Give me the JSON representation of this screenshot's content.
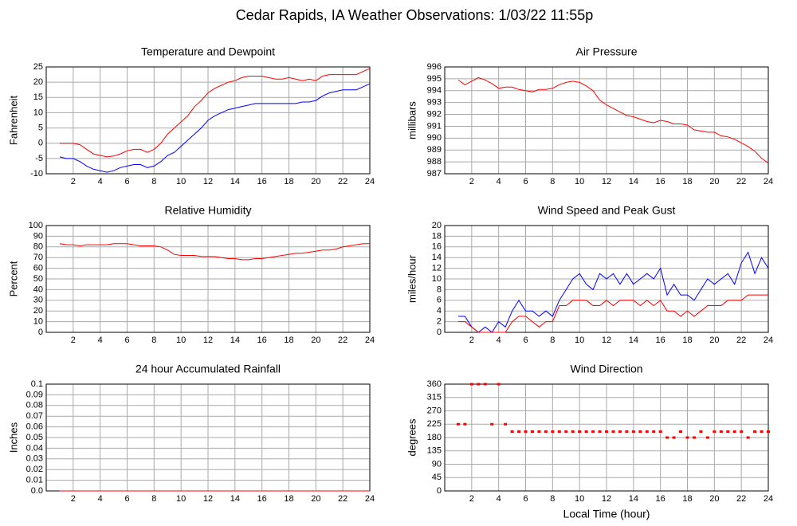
{
  "title": "Cedar Rapids, IA Weather Observations: 1/03/22 11:55p",
  "chart_data": [
    {
      "type": "line",
      "title": "Temperature and Dewpoint",
      "y_label": "Fahrenheit",
      "x": [
        1,
        1.5,
        2,
        2.5,
        3,
        3.5,
        4,
        4.5,
        5,
        5.5,
        6,
        6.5,
        7,
        7.5,
        8,
        8.5,
        9,
        9.5,
        10,
        10.5,
        11,
        11.5,
        12,
        12.5,
        13,
        13.5,
        14,
        14.5,
        15,
        15.5,
        16,
        16.5,
        17,
        17.5,
        18,
        18.5,
        19,
        19.5,
        20,
        20.5,
        21,
        21.5,
        22,
        22.5,
        23,
        23.5,
        24
      ],
      "series": [
        {
          "color": "#ff0000",
          "values": [
            0,
            0,
            0,
            -0.5,
            -2,
            -3.5,
            -4,
            -4.5,
            -4.2,
            -3.5,
            -2.5,
            -2,
            -2,
            -3,
            -2,
            0,
            3,
            5,
            7,
            9,
            12,
            14,
            16.5,
            18,
            19,
            20,
            20.5,
            21.5,
            22,
            22,
            22,
            21.5,
            21,
            21,
            21.5,
            21,
            20.5,
            21,
            20.5,
            22,
            22.5,
            22.5,
            22.5,
            22.5,
            22.5,
            23.5,
            24.5
          ]
        },
        {
          "color": "#0000ff",
          "values": [
            -4.5,
            -5,
            -5,
            -6,
            -7.5,
            -8.5,
            -9,
            -9.5,
            -9,
            -8,
            -7.5,
            -7,
            -7,
            -8,
            -7.5,
            -6,
            -4,
            -3,
            -1,
            1,
            3,
            5,
            7.5,
            9,
            10,
            11,
            11.5,
            12,
            12.5,
            13,
            13,
            13,
            13,
            13,
            13,
            13,
            13.5,
            13.5,
            14,
            15.5,
            16.5,
            17,
            17.5,
            17.5,
            17.5,
            18.5,
            19.5
          ]
        }
      ],
      "xlim": [
        0,
        24
      ],
      "xticks": [
        2,
        4,
        6,
        8,
        10,
        12,
        14,
        16,
        18,
        20,
        22,
        24
      ],
      "ylim": [
        -10,
        25
      ],
      "yticks": [
        -10,
        -5,
        0,
        5,
        10,
        15,
        20,
        25
      ],
      "grid": true
    },
    {
      "type": "line",
      "title": "Air Pressure",
      "y_label": "millibars",
      "x": [
        1,
        1.5,
        2,
        2.5,
        3,
        3.5,
        4,
        4.5,
        5,
        5.5,
        6,
        6.5,
        7,
        7.5,
        8,
        8.5,
        9,
        9.5,
        10,
        10.5,
        11,
        11.5,
        12,
        12.5,
        13,
        13.5,
        14,
        14.5,
        15,
        15.5,
        16,
        16.5,
        17,
        17.5,
        18,
        18.5,
        19,
        19.5,
        20,
        20.5,
        21,
        21.5,
        22,
        22.5,
        23,
        23.5,
        24
      ],
      "series": [
        {
          "color": "#ff0000",
          "values": [
            994.9,
            994.5,
            994.8,
            995.1,
            994.9,
            994.6,
            994.2,
            994.3,
            994.3,
            994.1,
            994,
            993.9,
            994.1,
            994.1,
            994.2,
            994.5,
            994.7,
            994.8,
            994.7,
            994.4,
            994,
            993.2,
            992.8,
            992.5,
            992.2,
            991.9,
            991.8,
            991.6,
            991.4,
            991.3,
            991.5,
            991.4,
            991.2,
            991.2,
            991.1,
            990.7,
            990.6,
            990.5,
            990.5,
            990.2,
            990.1,
            989.9,
            989.6,
            989.3,
            988.9,
            988.3,
            987.9
          ]
        }
      ],
      "xlim": [
        0,
        24
      ],
      "xticks": [
        2,
        4,
        6,
        8,
        10,
        12,
        14,
        16,
        18,
        20,
        22,
        24
      ],
      "ylim": [
        987,
        996
      ],
      "yticks": [
        987,
        988,
        989,
        990,
        991,
        992,
        993,
        994,
        995,
        996
      ],
      "grid": true
    },
    {
      "type": "line",
      "title": "Relative Humidity",
      "y_label": "Percent",
      "x": [
        1,
        1.5,
        2,
        2.5,
        3,
        3.5,
        4,
        4.5,
        5,
        5.5,
        6,
        6.5,
        7,
        7.5,
        8,
        8.5,
        9,
        9.5,
        10,
        10.5,
        11,
        11.5,
        12,
        12.5,
        13,
        13.5,
        14,
        14.5,
        15,
        15.5,
        16,
        16.5,
        17,
        17.5,
        18,
        18.5,
        19,
        19.5,
        20,
        20.5,
        21,
        21.5,
        22,
        22.5,
        23,
        23.5,
        24
      ],
      "series": [
        {
          "color": "#ff0000",
          "values": [
            83,
            82,
            82,
            81,
            82,
            82,
            82,
            82,
            83,
            83,
            83,
            82,
            81,
            81,
            81,
            80,
            77,
            73,
            72,
            72,
            72,
            71,
            71,
            71,
            70,
            69,
            69,
            68,
            68,
            69,
            69,
            70,
            71,
            72,
            73,
            74,
            74,
            75,
            76,
            77,
            77,
            78,
            80,
            81,
            82,
            83,
            83
          ]
        }
      ],
      "xlim": [
        0,
        24
      ],
      "xticks": [
        2,
        4,
        6,
        8,
        10,
        12,
        14,
        16,
        18,
        20,
        22,
        24
      ],
      "ylim": [
        0,
        100
      ],
      "yticks": [
        0,
        10,
        20,
        30,
        40,
        50,
        60,
        70,
        80,
        90,
        100
      ],
      "grid": true
    },
    {
      "type": "line",
      "title": "Wind Speed and Peak Gust",
      "y_label": "miles/hour",
      "x": [
        1,
        1.5,
        2,
        2.5,
        3,
        3.5,
        4,
        4.5,
        5,
        5.5,
        6,
        6.5,
        7,
        7.5,
        8,
        8.5,
        9,
        9.5,
        10,
        10.5,
        11,
        11.5,
        12,
        12.5,
        13,
        13.5,
        14,
        14.5,
        15,
        15.5,
        16,
        16.5,
        17,
        17.5,
        18,
        18.5,
        19,
        19.5,
        20,
        20.5,
        21,
        21.5,
        22,
        22.5,
        23,
        23.5,
        24
      ],
      "series": [
        {
          "color": "#0000ff",
          "values": [
            3,
            3,
            1,
            0,
            1,
            0,
            2,
            1,
            4,
            6,
            4,
            4,
            3,
            4,
            3,
            6,
            8,
            10,
            11,
            9,
            8,
            11,
            10,
            11,
            9,
            11,
            9,
            10,
            11,
            10,
            12,
            7,
            9,
            7,
            7,
            6,
            8,
            10,
            9,
            10,
            11,
            9,
            13,
            15,
            11,
            14,
            12
          ]
        },
        {
          "color": "#ff0000",
          "values": [
            2,
            2,
            1,
            0,
            0,
            0,
            0,
            0,
            2,
            3,
            3,
            2,
            1,
            2,
            2,
            5,
            5,
            6,
            6,
            6,
            5,
            5,
            6,
            5,
            6,
            6,
            6,
            5,
            6,
            5,
            6,
            4,
            4,
            3,
            4,
            3,
            4,
            5,
            5,
            5,
            6,
            6,
            6,
            7,
            7,
            7,
            7
          ]
        }
      ],
      "xlim": [
        0,
        24
      ],
      "xticks": [
        2,
        4,
        6,
        8,
        10,
        12,
        14,
        16,
        18,
        20,
        22,
        24
      ],
      "ylim": [
        0,
        20
      ],
      "yticks": [
        0,
        2,
        4,
        6,
        8,
        10,
        12,
        14,
        16,
        18,
        20
      ],
      "grid": true
    },
    {
      "type": "line",
      "title": "24 hour Accumulated Rainfall",
      "y_label": "Inches",
      "x": [
        1,
        24
      ],
      "series": [
        {
          "color": "#ff0000",
          "values": [
            0,
            0
          ]
        }
      ],
      "xlim": [
        0,
        24
      ],
      "xticks": [
        2,
        4,
        6,
        8,
        10,
        12,
        14,
        16,
        18,
        20,
        22,
        24
      ],
      "ylim": [
        0,
        0.1
      ],
      "yticks": [
        {
          "value": 0,
          "label": "0.0"
        },
        0.01,
        0.02,
        0.03,
        0.04,
        0.05,
        0.06,
        0.07,
        0.08,
        0.09,
        0.1
      ],
      "grid": true
    },
    {
      "type": "scatter",
      "title": "Wind Direction",
      "y_label": "degrees",
      "x_label": "Local Time (hour)",
      "x": [
        1,
        1.5,
        2,
        2.5,
        3,
        3.5,
        4,
        4.5,
        5,
        5.5,
        6,
        6.5,
        7,
        7.5,
        8,
        8.5,
        9,
        9.5,
        10,
        10.5,
        11,
        11.5,
        12,
        12.5,
        13,
        13.5,
        14,
        14.5,
        15,
        15.5,
        16,
        16.5,
        17,
        17.5,
        18,
        18.5,
        19,
        19.5,
        20,
        20.5,
        21,
        21.5,
        22,
        22.5,
        23,
        23.5,
        24
      ],
      "series": [
        {
          "color": "#ff0000",
          "values": [
            225,
            225,
            360,
            360,
            360,
            225,
            360,
            225,
            200,
            200,
            200,
            200,
            200,
            200,
            200,
            200,
            200,
            200,
            200,
            200,
            200,
            200,
            200,
            200,
            200,
            200,
            200,
            200,
            200,
            200,
            200,
            180,
            180,
            200,
            180,
            180,
            200,
            180,
            200,
            200,
            200,
            200,
            200,
            180,
            200,
            200,
            200
          ]
        }
      ],
      "xlim": [
        0,
        24
      ],
      "xticks": [
        2,
        4,
        6,
        8,
        10,
        12,
        14,
        16,
        18,
        20,
        22,
        24
      ],
      "ylim": [
        0,
        360
      ],
      "yticks": [
        0,
        45,
        90,
        135,
        180,
        225,
        270,
        315,
        360
      ],
      "grid": true
    }
  ]
}
